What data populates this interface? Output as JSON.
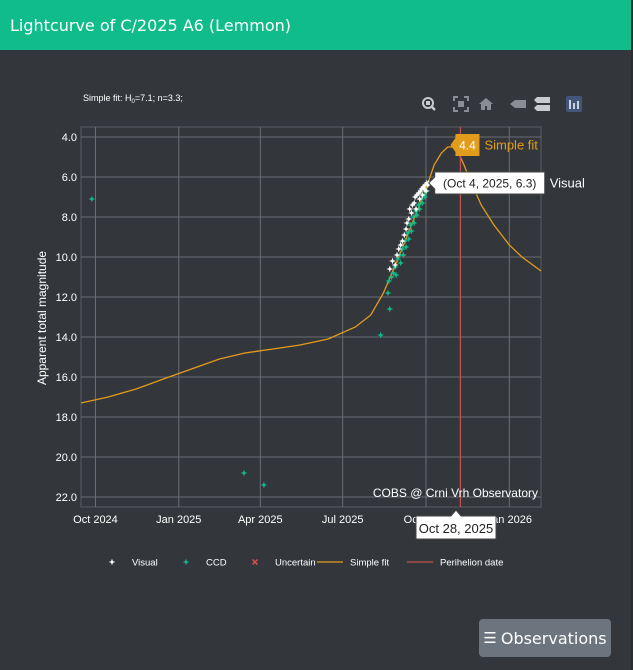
{
  "header": {
    "title": "Lightcurve of C/2025 A6 (Lemmon)"
  },
  "fit_note": {
    "prefix": "Simple fit: H",
    "sub": "0",
    "suffix": "=7.1; n=3.3;"
  },
  "modebar": {
    "icons": [
      "zoom-icon",
      "autoscale-icon",
      "home-icon",
      "hover-closest-icon",
      "hover-compare-icon",
      "plotly-logo-icon"
    ]
  },
  "chart_data": {
    "type": "scatter",
    "title": "",
    "xlabel": "",
    "ylabel": "Apparent total magnitude",
    "x_ticks": [
      {
        "label": "Oct 2024",
        "date": "2024-10-01"
      },
      {
        "label": "Jan 2025",
        "date": "2025-01-01"
      },
      {
        "label": "Apr 2025",
        "date": "2025-04-01"
      },
      {
        "label": "Jul 2025",
        "date": "2025-07-01"
      },
      {
        "label": "Oct 2025",
        "date": "2025-10-01"
      },
      {
        "label": "Jan 2026",
        "date": "2026-01-01"
      }
    ],
    "xlim": [
      "2024-09-15",
      "2026-02-05"
    ],
    "y_ticks": [
      "4.0",
      "6.0",
      "8.0",
      "10.0",
      "12.0",
      "14.0",
      "16.0",
      "18.0",
      "20.0",
      "22.0"
    ],
    "ylim": [
      22.5,
      3.5
    ],
    "y_reversed": true,
    "grid": true,
    "legend_position": "bottom",
    "legend": [
      {
        "name": "Visual",
        "symbol": "star",
        "color": "#ffffff"
      },
      {
        "name": "CCD",
        "symbol": "star",
        "color": "#10bd8a"
      },
      {
        "name": "Uncertain",
        "symbol": "x",
        "color": "#e05050"
      },
      {
        "name": "Simple fit",
        "symbol": "line",
        "color": "#e39b1b"
      },
      {
        "name": "Perihelion date",
        "symbol": "line",
        "color": "#c0504d"
      }
    ],
    "series": [
      {
        "name": "Visual",
        "color": "#ffffff",
        "points": [
          [
            "2025-08-22",
            10.6
          ],
          [
            "2025-08-25",
            10.2
          ],
          [
            "2025-08-28",
            10.4
          ],
          [
            "2025-08-30",
            9.9
          ],
          [
            "2025-09-01",
            9.6
          ],
          [
            "2025-09-03",
            9.4
          ],
          [
            "2025-09-05",
            9.2
          ],
          [
            "2025-09-07",
            8.9
          ],
          [
            "2025-09-09",
            8.6
          ],
          [
            "2025-09-10",
            8.3
          ],
          [
            "2025-09-12",
            8.1
          ],
          [
            "2025-09-13",
            7.6
          ],
          [
            "2025-09-15",
            7.8
          ],
          [
            "2025-09-16",
            7.4
          ],
          [
            "2025-09-18",
            7.3
          ],
          [
            "2025-09-19",
            7.0
          ],
          [
            "2025-09-20",
            7.6
          ],
          [
            "2025-09-21",
            6.9
          ],
          [
            "2025-09-23",
            6.8
          ],
          [
            "2025-09-24",
            7.1
          ],
          [
            "2025-09-25",
            6.7
          ],
          [
            "2025-09-26",
            6.6
          ],
          [
            "2025-09-27",
            6.9
          ],
          [
            "2025-09-28",
            6.5
          ],
          [
            "2025-09-29",
            6.6
          ],
          [
            "2025-09-30",
            6.4
          ],
          [
            "2025-10-01",
            6.7
          ],
          [
            "2025-10-02",
            6.3
          ],
          [
            "2025-10-03",
            6.4
          ],
          [
            "2025-10-04",
            6.3
          ]
        ]
      },
      {
        "name": "CCD",
        "color": "#10bd8a",
        "points": [
          [
            "2024-09-27",
            7.1
          ],
          [
            "2025-03-14",
            20.8
          ],
          [
            "2025-04-05",
            21.4
          ],
          [
            "2025-08-12",
            13.9
          ],
          [
            "2025-08-20",
            11.8
          ],
          [
            "2025-08-22",
            12.6
          ],
          [
            "2025-08-21",
            11.2
          ],
          [
            "2025-08-24",
            11.0
          ],
          [
            "2025-08-26",
            10.8
          ],
          [
            "2025-08-28",
            10.5
          ],
          [
            "2025-08-29",
            10.9
          ],
          [
            "2025-08-31",
            10.1
          ],
          [
            "2025-09-02",
            9.9
          ],
          [
            "2025-09-03",
            10.3
          ],
          [
            "2025-09-05",
            9.6
          ],
          [
            "2025-09-06",
            9.9
          ],
          [
            "2025-09-08",
            9.2
          ],
          [
            "2025-09-09",
            9.5
          ],
          [
            "2025-09-11",
            8.8
          ],
          [
            "2025-09-12",
            9.1
          ],
          [
            "2025-09-14",
            8.4
          ],
          [
            "2025-09-15",
            8.7
          ],
          [
            "2025-09-17",
            8.0
          ],
          [
            "2025-09-18",
            8.3
          ],
          [
            "2025-09-20",
            7.7
          ],
          [
            "2025-09-21",
            7.9
          ],
          [
            "2025-09-23",
            7.4
          ],
          [
            "2025-09-24",
            7.6
          ],
          [
            "2025-09-26",
            7.1
          ],
          [
            "2025-09-27",
            7.3
          ],
          [
            "2025-09-29",
            6.9
          ],
          [
            "2025-09-30",
            7.0
          ],
          [
            "2025-10-02",
            6.7
          ]
        ]
      }
    ],
    "fit_curve": {
      "name": "Simple fit",
      "color": "#e39b1b",
      "points": [
        [
          "2024-09-15",
          17.3
        ],
        [
          "2024-10-15",
          17.0
        ],
        [
          "2024-11-15",
          16.6
        ],
        [
          "2024-12-15",
          16.1
        ],
        [
          "2025-01-15",
          15.6
        ],
        [
          "2025-02-15",
          15.1
        ],
        [
          "2025-03-15",
          14.8
        ],
        [
          "2025-04-15",
          14.6
        ],
        [
          "2025-05-15",
          14.4
        ],
        [
          "2025-06-15",
          14.1
        ],
        [
          "2025-07-15",
          13.5
        ],
        [
          "2025-08-01",
          12.9
        ],
        [
          "2025-08-15",
          11.8
        ],
        [
          "2025-09-01",
          10.0
        ],
        [
          "2025-09-15",
          8.4
        ],
        [
          "2025-10-01",
          6.6
        ],
        [
          "2025-10-10",
          5.4
        ],
        [
          "2025-10-18",
          4.8
        ],
        [
          "2025-10-25",
          4.5
        ],
        [
          "2025-10-30",
          4.5
        ],
        [
          "2025-11-05",
          4.7
        ],
        [
          "2025-11-12",
          5.4
        ],
        [
          "2025-11-20",
          6.3
        ],
        [
          "2025-12-01",
          7.4
        ],
        [
          "2025-12-15",
          8.4
        ],
        [
          "2026-01-01",
          9.4
        ],
        [
          "2026-01-15",
          10.0
        ],
        [
          "2026-02-05",
          10.7
        ]
      ]
    },
    "perihelion": {
      "name": "Perihelion date",
      "date": "2025-11-08",
      "color": "#c0504d"
    },
    "hover_x_label": "Oct 28, 2025",
    "hover_fit_label": {
      "value": "4.4",
      "name": "Simple fit",
      "date": "2025-10-28",
      "y": 4.4
    },
    "hover_visual_label": {
      "text": "(Oct 4, 2025, 6.3)",
      "name": "Visual",
      "date": "2025-10-04",
      "y": 6.3
    },
    "watermark": "COBS @ Crni Vrh Observatory"
  },
  "footer": {
    "observations_button": "Observations"
  }
}
